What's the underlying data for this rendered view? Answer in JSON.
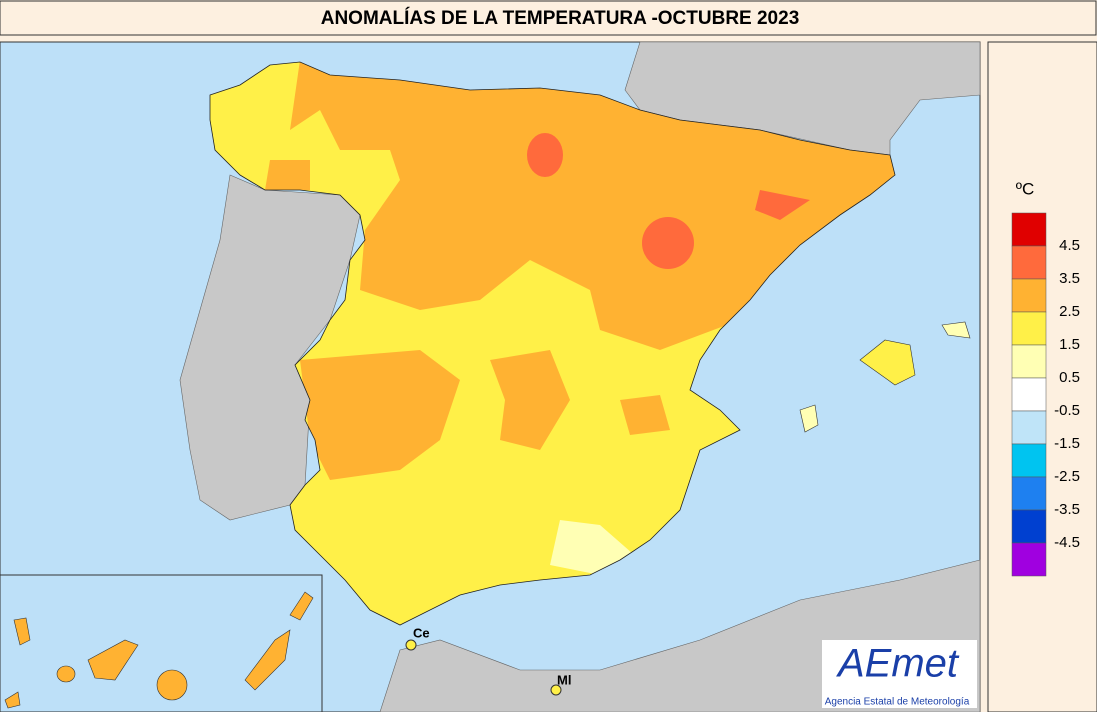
{
  "header": {
    "title": "ANOMALÍAS DE LA TEMPERATURA -OCTUBRE 2023"
  },
  "legend": {
    "unit": "ºC",
    "labels": [
      4.5,
      3.5,
      2.5,
      1.5,
      0.5,
      -0.5,
      -1.5,
      -2.5,
      -3.5,
      -4.5
    ],
    "colors": [
      "#e00000",
      "#ff6a3c",
      "#ffb232",
      "#fff048",
      "#ffffb4",
      "#ffffff",
      "#bfe4f8",
      "#00c4f0",
      "#1e80f0",
      "#0040d0",
      "#a000e0"
    ]
  },
  "places": [
    {
      "label": "Ce"
    },
    {
      "label": "Ml"
    }
  ],
  "logo": {
    "name": "AEmet",
    "caption": "Agencia Estatal de Meteorología"
  }
}
